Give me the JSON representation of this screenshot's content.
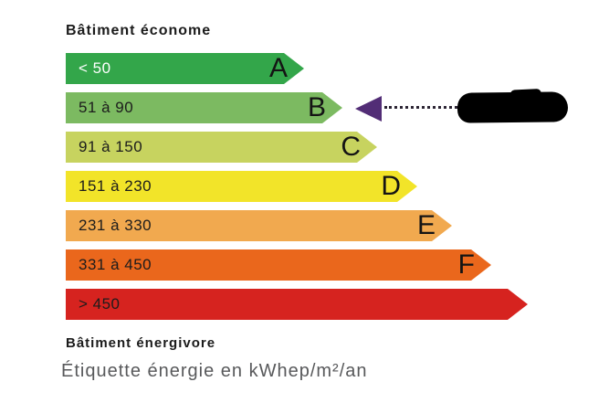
{
  "header": {
    "top_label": "Bâtiment économe"
  },
  "footer": {
    "bottom_label": "Bâtiment énergivore",
    "caption": "Étiquette énergie en kWhep/m²/an"
  },
  "scale": {
    "rows": [
      {
        "letter": "A",
        "range": "< 50",
        "color": "#33a64a"
      },
      {
        "letter": "B",
        "range": "51 à 90",
        "color": "#7cba61"
      },
      {
        "letter": "C",
        "range": "91 à 150",
        "color": "#c7d35f"
      },
      {
        "letter": "D",
        "range": "151 à 230",
        "color": "#f2e429"
      },
      {
        "letter": "E",
        "range": "231 à 330",
        "color": "#f1a94f"
      },
      {
        "letter": "F",
        "range": "331 à 450",
        "color": "#ea671c"
      },
      {
        "letter": "",
        "range": "> 450",
        "color": "#d6231f"
      }
    ]
  },
  "pointer": {
    "points_to": "B",
    "arrow_color": "#522d76",
    "redaction_color": "#000000"
  }
}
